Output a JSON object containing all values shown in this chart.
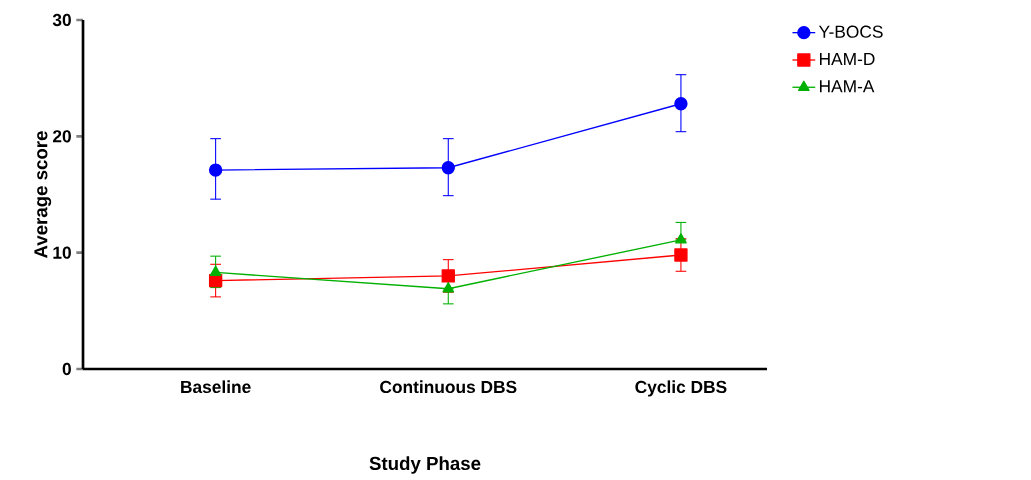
{
  "chart_data": {
    "type": "line",
    "xlabel": "Study Phase",
    "ylabel": "Average score",
    "categories": [
      "Baseline",
      "Continuous DBS",
      "Cyclic DBS"
    ],
    "ylim": [
      0,
      30
    ],
    "yticks": [
      0,
      10,
      20,
      30
    ],
    "grid": false,
    "legend": "top right",
    "line_style": "solid",
    "series": [
      {
        "name": "Y-BOCS",
        "color": "#0000ff",
        "marker": "circle",
        "values": [
          17.1,
          17.3,
          22.8
        ],
        "errors": [
          [
            14.6,
            19.8
          ],
          [
            14.9,
            19.8
          ],
          [
            20.4,
            25.3
          ]
        ]
      },
      {
        "name": "HAM-D",
        "color": "#ff0000",
        "marker": "square",
        "values": [
          7.6,
          8.0,
          9.8
        ],
        "errors": [
          [
            6.2,
            9.0
          ],
          [
            6.6,
            9.4
          ],
          [
            8.4,
            11.2
          ]
        ]
      },
      {
        "name": "HAM-A",
        "color": "#00b000",
        "marker": "triangle",
        "values": [
          8.3,
          6.9,
          11.1
        ],
        "errors": [
          [
            7.0,
            9.7
          ],
          [
            5.6,
            6.9
          ],
          [
            11.1,
            12.6
          ]
        ]
      }
    ]
  }
}
